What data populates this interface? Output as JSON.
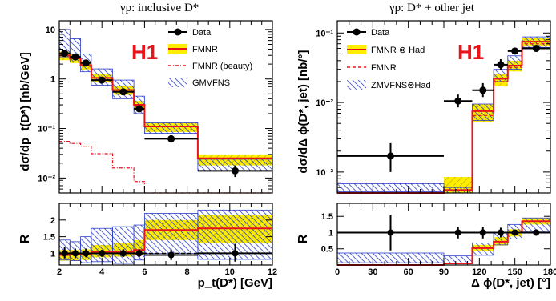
{
  "chart_data": [
    {
      "type": "line",
      "panel": "left",
      "title": "γp:  inclusive D*",
      "xlabel": "p_t(D*) [GeV]",
      "ylabel": "dσ/dp_t(D*)  [nb/GeV]",
      "ratio_ylabel": "R",
      "badge": "H1",
      "xlim": [
        2,
        12
      ],
      "ylim_log": [
        0.005,
        15
      ],
      "ratio_ylim": [
        0.65,
        2.5
      ],
      "xticks": [
        2,
        4,
        6,
        8,
        10,
        12
      ],
      "yticks": [
        {
          "v": 0.01,
          "l": "10⁻²"
        },
        {
          "v": 0.1,
          "l": "10⁻¹"
        },
        {
          "v": 1,
          "l": "1"
        },
        {
          "v": 10,
          "l": "10"
        }
      ],
      "ratio_yticks": [
        1,
        1.5,
        2
      ],
      "bins": [
        2,
        2.5,
        3,
        3.5,
        4.5,
        5.5,
        6,
        8.5,
        12
      ],
      "data": [
        {
          "x": 2.25,
          "y": 3.3,
          "ylo": 2.8,
          "yhi": 3.9,
          "r": 1.0
        },
        {
          "x": 2.75,
          "y": 2.8,
          "ylo": 2.4,
          "yhi": 3.2,
          "r": 1.0
        },
        {
          "x": 3.25,
          "y": 2.1,
          "ylo": 1.85,
          "yhi": 2.4,
          "r": 1.0
        },
        {
          "x": 4.0,
          "y": 0.95,
          "ylo": 0.85,
          "yhi": 1.05,
          "r": 1.0
        },
        {
          "x": 5.0,
          "y": 0.55,
          "ylo": 0.49,
          "yhi": 0.62,
          "r": 1.0
        },
        {
          "x": 5.75,
          "y": 0.25,
          "ylo": 0.22,
          "yhi": 0.28,
          "r": 1.0
        },
        {
          "x": 7.25,
          "y": 0.062,
          "ylo": 0.052,
          "yhi": 0.073,
          "r": 0.95
        },
        {
          "x": 10.25,
          "y": 0.014,
          "ylo": 0.0105,
          "yhi": 0.018,
          "r": 1.0
        }
      ],
      "fmnr": {
        "center": [
          3.0,
          2.6,
          1.9,
          1.05,
          0.6,
          0.3,
          0.11,
          0.025
        ],
        "lo": [
          2.4,
          2.1,
          1.55,
          0.85,
          0.48,
          0.24,
          0.085,
          0.018
        ],
        "hi": [
          3.6,
          3.1,
          2.3,
          1.25,
          0.72,
          0.36,
          0.13,
          0.03
        ]
      },
      "gmvfns": {
        "lo": [
          2.8,
          2.2,
          1.4,
          0.75,
          0.4,
          0.2,
          0.08,
          0.014
        ],
        "hi": [
          10.0,
          6.5,
          3.2,
          1.6,
          0.95,
          0.45,
          0.13,
          0.024
        ]
      },
      "beauty": [
        0.055,
        0.05,
        0.044,
        0.031,
        0.016,
        0.0085,
        0.005,
        0.005
      ],
      "ratio_fmnr": {
        "center": [
          0.95,
          0.97,
          0.97,
          1.05,
          1.05,
          1.1,
          1.7,
          1.75
        ],
        "lo": [
          0.78,
          0.78,
          0.8,
          0.88,
          0.9,
          0.95,
          1.4,
          1.3
        ],
        "hi": [
          1.1,
          1.1,
          1.12,
          1.25,
          1.3,
          1.4,
          2.0,
          2.15
        ]
      },
      "ratio_gmvfns": {
        "lo": [
          0.8,
          0.78,
          0.72,
          0.75,
          0.7,
          0.8,
          1.0,
          0.82
        ],
        "hi": [
          1.4,
          1.35,
          1.5,
          1.75,
          1.8,
          1.85,
          2.2,
          2.3
        ]
      },
      "legend": [
        "Data",
        "FMNR",
        "FMNR (beauty)",
        "GMVFNS"
      ]
    },
    {
      "type": "line",
      "panel": "right",
      "title": "γp:  D* + other jet",
      "xlabel": "Δ ϕ(D*, jet) [°]",
      "ylabel": "dσ/dΔ ϕ(D*, jet)  [nb/°]",
      "ratio_ylabel": "R",
      "badge": "H1",
      "xlim": [
        0,
        180
      ],
      "ylim_log": [
        0.0005,
        0.15
      ],
      "ratio_ylim": [
        0,
        1.9
      ],
      "xticks": [
        0,
        30,
        60,
        90,
        120,
        150,
        180
      ],
      "yticks": [
        {
          "v": 0.001,
          "l": "10⁻³"
        },
        {
          "v": 0.01,
          "l": "10⁻²"
        },
        {
          "v": 0.1,
          "l": "10⁻¹"
        }
      ],
      "ratio_yticks": [
        0.5,
        1,
        1.5
      ],
      "bins": [
        0,
        90,
        114,
        132,
        144,
        156,
        180
      ],
      "data": [
        {
          "x": 45,
          "y": 0.0017,
          "ylo": 0.001,
          "yhi": 0.0026,
          "xerr": 45,
          "r": 1.0,
          "rlo": 0.45,
          "rhi": 1.55
        },
        {
          "x": 102,
          "y": 0.0105,
          "ylo": 0.0085,
          "yhi": 0.013,
          "xerr": 12,
          "r": 1.0,
          "rlo": 0.82,
          "rhi": 1.18
        },
        {
          "x": 123,
          "y": 0.015,
          "ylo": 0.012,
          "yhi": 0.019,
          "xerr": 9,
          "r": 1.0,
          "rlo": 0.82,
          "rhi": 1.18
        },
        {
          "x": 138,
          "y": 0.035,
          "ylo": 0.029,
          "yhi": 0.042,
          "xerr": 6,
          "r": 1.0,
          "rlo": 0.85,
          "rhi": 1.15
        },
        {
          "x": 150,
          "y": 0.055,
          "ylo": 0.05,
          "yhi": 0.061,
          "xerr": 6,
          "r": 1.0,
          "rlo": 0.92,
          "rhi": 1.08
        },
        {
          "x": 168,
          "y": 0.06,
          "ylo": 0.057,
          "yhi": 0.063,
          "xerr": 12,
          "r": 1.0,
          "rlo": 0.97,
          "rhi": 1.03
        }
      ],
      "fmnr_had": {
        "center": [
          0.0001,
          0.00055,
          0.0075,
          0.022,
          0.034,
          0.075
        ],
        "lo": [
          0.0001,
          0.00045,
          0.0052,
          0.017,
          0.028,
          0.064
        ],
        "hi": [
          0.0001,
          0.00085,
          0.0095,
          0.026,
          0.04,
          0.085
        ]
      },
      "fmnr": [
        0.0001,
        0.00055,
        0.0065,
        0.02,
        0.032,
        0.07
      ],
      "zmvfns_had": {
        "lo": [
          0.00052,
          0.00045,
          0.0055,
          0.02,
          0.03,
          0.062
        ],
        "hi": [
          0.00068,
          0.0006,
          0.0095,
          0.03,
          0.047,
          0.088
        ]
      },
      "ratio_fmnr_had": {
        "center": [
          0.0,
          0.05,
          0.52,
          0.72,
          1.0,
          1.35
        ],
        "lo": [
          0.0,
          0.04,
          0.42,
          0.6,
          0.88,
          1.25
        ],
        "hi": [
          0.0,
          0.06,
          0.62,
          0.86,
          1.1,
          1.45
        ]
      },
      "ratio_zmvfns": {
        "lo": [
          0.07,
          0.05,
          0.3,
          0.62,
          0.8,
          1.02
        ],
        "hi": [
          0.37,
          0.28,
          0.68,
          1.0,
          1.25,
          1.45
        ]
      },
      "legend": [
        "Data",
        "FMNR ⊗ Had",
        "FMNR",
        "ZMVFNS⊗Had"
      ]
    }
  ],
  "colors": {
    "fmnr_band": "#ffee00",
    "fmnr_line": "#e8141a",
    "gmvfns_hatch": "#2a3ec8",
    "data": "#000000"
  }
}
